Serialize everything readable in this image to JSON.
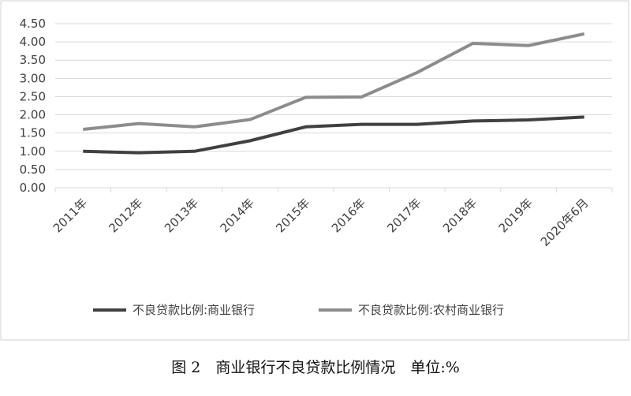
{
  "chart_data": {
    "type": "line",
    "categories": [
      "2011年",
      "2012年",
      "2013年",
      "2014年",
      "2015年",
      "2016年",
      "2017年",
      "2018年",
      "2019年",
      "2020年6月"
    ],
    "series": [
      {
        "name": "不良贷款比例:商业银行",
        "color": "#404040",
        "values": [
          1.0,
          0.96,
          1.0,
          1.29,
          1.67,
          1.74,
          1.74,
          1.83,
          1.86,
          1.94
        ]
      },
      {
        "name": "不良贷款比例:农村商业银行",
        "color": "#8c8c8c",
        "values": [
          1.6,
          1.76,
          1.67,
          1.87,
          2.48,
          2.49,
          3.16,
          3.96,
          3.9,
          4.22
        ]
      }
    ],
    "ylim": [
      0,
      4.5
    ],
    "yticks": [
      {
        "value": 0,
        "label": "0.00"
      },
      {
        "value": 0.5,
        "label": "0.50"
      },
      {
        "value": 1,
        "label": "1.00"
      },
      {
        "value": 1.5,
        "label": "1.50"
      },
      {
        "value": 2,
        "label": "2.00"
      },
      {
        "value": 2.5,
        "label": "2.50"
      },
      {
        "value": 3,
        "label": "3.00"
      },
      {
        "value": 3.5,
        "label": "3.50"
      },
      {
        "value": 4,
        "label": "4.00"
      },
      {
        "value": 4.5,
        "label": "4.50"
      }
    ],
    "grid": true,
    "legend": "bottom",
    "caption": "图 2　商业银行不良贷款比例情况　单位:%"
  }
}
